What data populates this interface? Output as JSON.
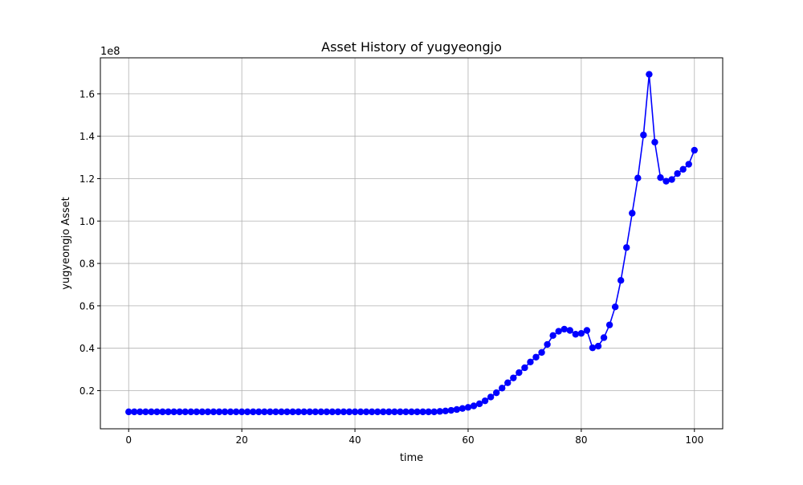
{
  "chart_data": {
    "type": "line",
    "title": "Asset History of yugyeongjo",
    "xlabel": "time",
    "ylabel": "yugyeongjo Asset",
    "y_offset_label": "1e8",
    "xlim": [
      -5,
      105
    ],
    "ylim": [
      0.02,
      1.77
    ],
    "x_ticks": [
      0,
      20,
      40,
      60,
      80,
      100
    ],
    "x_tick_labels": [
      "0",
      "20",
      "40",
      "60",
      "80",
      "100"
    ],
    "y_ticks": [
      0.2,
      0.4,
      0.6,
      0.8,
      1.0,
      1.2,
      1.4,
      1.6
    ],
    "y_tick_labels": [
      "0.2",
      "0.4",
      "0.6",
      "0.8",
      "1.0",
      "1.2",
      "1.4",
      "1.6"
    ],
    "grid": true,
    "series": [
      {
        "color": "#0000ff",
        "marker": "circle",
        "x": [
          0,
          1,
          2,
          3,
          4,
          5,
          6,
          7,
          8,
          9,
          10,
          11,
          12,
          13,
          14,
          15,
          16,
          17,
          18,
          19,
          20,
          21,
          22,
          23,
          24,
          25,
          26,
          27,
          28,
          29,
          30,
          31,
          32,
          33,
          34,
          35,
          36,
          37,
          38,
          39,
          40,
          41,
          42,
          43,
          44,
          45,
          46,
          47,
          48,
          49,
          50,
          51,
          52,
          53,
          54,
          55,
          56,
          57,
          58,
          59,
          60,
          61,
          62,
          63,
          64,
          65,
          66,
          67,
          68,
          69,
          70,
          71,
          72,
          73,
          74,
          75,
          76,
          77,
          78,
          79,
          80,
          81,
          82,
          83,
          84,
          85,
          86,
          87,
          88,
          89,
          90,
          91,
          92,
          93,
          94,
          95,
          96,
          97,
          98,
          99,
          100
        ],
        "y": [
          0.1,
          0.1,
          0.1,
          0.1,
          0.1,
          0.1,
          0.1,
          0.1,
          0.1,
          0.1,
          0.1,
          0.1,
          0.1,
          0.1,
          0.1,
          0.1,
          0.1,
          0.1,
          0.1,
          0.1,
          0.1,
          0.1,
          0.1,
          0.1,
          0.1,
          0.1,
          0.1,
          0.1,
          0.1,
          0.1,
          0.1,
          0.1,
          0.1,
          0.1,
          0.1,
          0.1,
          0.1,
          0.1,
          0.1,
          0.1,
          0.1,
          0.1,
          0.1,
          0.1,
          0.1,
          0.1,
          0.1,
          0.1,
          0.1,
          0.1,
          0.1,
          0.1,
          0.1,
          0.1,
          0.1,
          0.102,
          0.104,
          0.107,
          0.111,
          0.116,
          0.121,
          0.128,
          0.138,
          0.152,
          0.17,
          0.19,
          0.212,
          0.237,
          0.26,
          0.285,
          0.308,
          0.335,
          0.358,
          0.38,
          0.418,
          0.46,
          0.48,
          0.49,
          0.484,
          0.466,
          0.47,
          0.484,
          0.402,
          0.41,
          0.45,
          0.51,
          0.595,
          0.72,
          0.875,
          1.037,
          1.203,
          1.406,
          1.692,
          1.372,
          1.205,
          1.188,
          1.196,
          1.224,
          1.244,
          1.268,
          1.334
        ]
      }
    ]
  }
}
